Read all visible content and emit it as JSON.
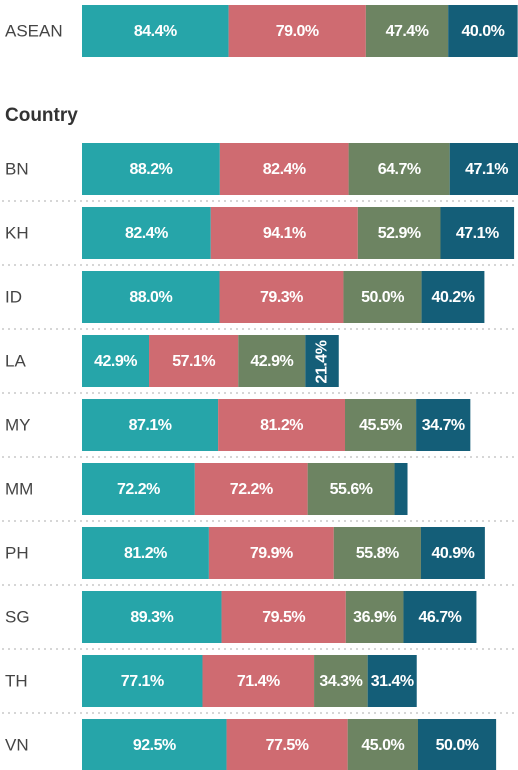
{
  "chart_data": [
    {
      "type": "stacked-bar-horizontal",
      "categories": [
        "ASEAN"
      ],
      "xlim": [
        0,
        251
      ],
      "series": [
        {
          "color": "#26a5a9",
          "values": [
            84.4
          ],
          "value_labels": [
            "84.4%"
          ]
        },
        {
          "color": "#cf6b71",
          "values": [
            79.0
          ],
          "value_labels": [
            "79.0%"
          ]
        },
        {
          "color": "#6d8462",
          "values": [
            47.4
          ],
          "value_labels": [
            "47.4%"
          ]
        },
        {
          "color": "#145e78",
          "values": [
            40.0
          ],
          "value_labels": [
            "40.0%"
          ]
        }
      ]
    },
    {
      "type": "stacked-bar-horizontal",
      "title": "Country",
      "categories": [
        "BN",
        "KH",
        "ID",
        "LA",
        "MY",
        "MM",
        "PH",
        "SG",
        "TH",
        "VN"
      ],
      "xlim": [
        0,
        279
      ],
      "series": [
        {
          "color": "#26a5a9",
          "values": [
            88.2,
            82.4,
            88.0,
            42.9,
            87.1,
            72.2,
            81.2,
            89.3,
            77.1,
            92.5
          ],
          "value_labels": [
            "88.2%",
            "82.4%",
            "88.0%",
            "42.9%",
            "87.1%",
            "72.2%",
            "81.2%",
            "89.3%",
            "77.1%",
            "92.5%"
          ]
        },
        {
          "color": "#cf6b71",
          "values": [
            82.4,
            94.1,
            79.3,
            57.1,
            81.2,
            72.2,
            79.9,
            79.5,
            71.4,
            77.5
          ],
          "value_labels": [
            "82.4%",
            "94.1%",
            "79.3%",
            "57.1%",
            "81.2%",
            "72.2%",
            "79.9%",
            "79.5%",
            "71.4%",
            "77.5%"
          ]
        },
        {
          "color": "#6d8462",
          "values": [
            64.7,
            52.9,
            50.0,
            42.9,
            45.5,
            55.6,
            55.8,
            36.9,
            34.3,
            45.0
          ],
          "value_labels": [
            "64.7%",
            "52.9%",
            "50.0%",
            "42.9%",
            "45.5%",
            "55.6%",
            "55.8%",
            "36.9%",
            "34.3%",
            "45.0%"
          ]
        },
        {
          "color": "#145e78",
          "values": [
            47.1,
            47.1,
            40.2,
            21.4,
            34.7,
            8.3,
            40.9,
            46.7,
            31.4,
            50.0
          ],
          "value_labels": [
            "47.1%",
            "47.1%",
            "40.2%",
            "21.4%",
            "34.7%",
            null,
            "40.9%",
            "46.7%",
            "31.4%",
            "50.0%"
          ]
        }
      ]
    }
  ]
}
